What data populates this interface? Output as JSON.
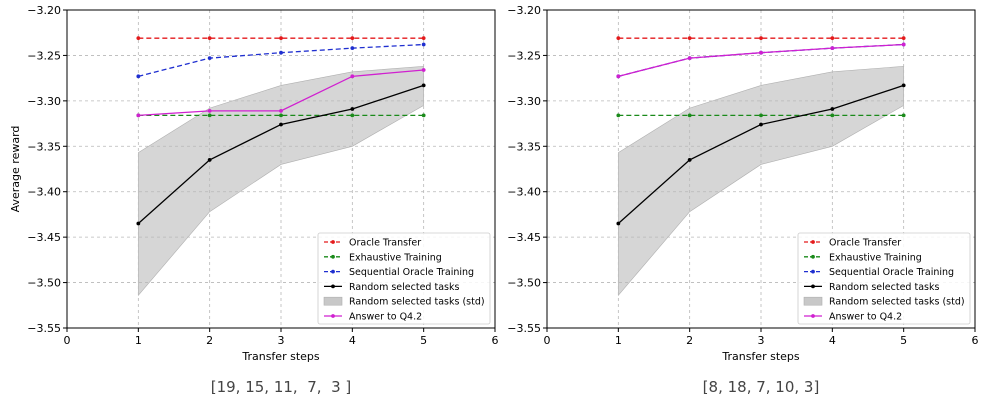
{
  "chart_data": [
    {
      "type": "line",
      "xlabel": "Transfer steps",
      "ylabel": "Average reward",
      "xlim": [
        0,
        6
      ],
      "ylim": [
        -3.55,
        -3.2
      ],
      "xticks": [
        0,
        1,
        2,
        3,
        4,
        5,
        6
      ],
      "yticks": [
        -3.55,
        -3.5,
        -3.45,
        -3.4,
        -3.35,
        -3.3,
        -3.25,
        -3.2
      ],
      "ytick_labels": [
        "−3.55",
        "−3.50",
        "−3.45",
        "−3.40",
        "−3.35",
        "−3.30",
        "−3.25",
        "−3.20"
      ],
      "grid": true,
      "legend_position": "lower-right",
      "caption": "[19, 15, 11,  7,  3 ]",
      "x": [
        1,
        2,
        3,
        4,
        5
      ],
      "series": [
        {
          "name": "Oracle Transfer",
          "color": "#e41a1c",
          "style": "dashed",
          "values": [
            -3.231,
            -3.231,
            -3.231,
            -3.231,
            -3.231
          ]
        },
        {
          "name": "Exhaustive Training",
          "color": "#1a8a1a",
          "style": "dashed",
          "values": [
            -3.316,
            -3.316,
            -3.316,
            -3.316,
            -3.316
          ]
        },
        {
          "name": "Sequential Oracle Training",
          "color": "#1f2fd0",
          "style": "dashed",
          "values": [
            -3.273,
            -3.253,
            -3.247,
            -3.242,
            -3.238
          ]
        },
        {
          "name": "Random selected tasks",
          "color": "#000000",
          "style": "solid",
          "values": [
            -3.435,
            -3.365,
            -3.326,
            -3.309,
            -3.283
          ]
        },
        {
          "name": "Answer to Q4.2",
          "color": "#d020d0",
          "style": "solid",
          "values": [
            -3.316,
            -3.311,
            -3.311,
            -3.273,
            -3.266
          ]
        }
      ],
      "band": {
        "name": "Random selected tasks (std)",
        "color": "#c8c8c8",
        "lower": [
          -3.514,
          -3.422,
          -3.37,
          -3.35,
          -3.305
        ],
        "upper": [
          -3.357,
          -3.308,
          -3.283,
          -3.268,
          -3.262
        ]
      }
    },
    {
      "type": "line",
      "xlabel": "Transfer steps",
      "ylabel": "",
      "xlim": [
        0,
        6
      ],
      "ylim": [
        -3.55,
        -3.2
      ],
      "xticks": [
        0,
        1,
        2,
        3,
        4,
        5,
        6
      ],
      "yticks": [
        -3.55,
        -3.5,
        -3.45,
        -3.4,
        -3.35,
        -3.3,
        -3.25,
        -3.2
      ],
      "ytick_labels": [
        "−3.55",
        "−3.50",
        "−3.45",
        "−3.40",
        "−3.35",
        "−3.30",
        "−3.25",
        "−3.20"
      ],
      "grid": true,
      "legend_position": "lower-right",
      "caption": "[8, 18, 7, 10, 3]",
      "x": [
        1,
        2,
        3,
        4,
        5
      ],
      "series": [
        {
          "name": "Oracle Transfer",
          "color": "#e41a1c",
          "style": "dashed",
          "values": [
            -3.231,
            -3.231,
            -3.231,
            -3.231,
            -3.231
          ]
        },
        {
          "name": "Exhaustive Training",
          "color": "#1a8a1a",
          "style": "dashed",
          "values": [
            -3.316,
            -3.316,
            -3.316,
            -3.316,
            -3.316
          ]
        },
        {
          "name": "Sequential Oracle Training",
          "color": "#1f2fd0",
          "style": "dashed",
          "values": [
            -3.273,
            -3.253,
            -3.247,
            -3.242,
            -3.238
          ]
        },
        {
          "name": "Random selected tasks",
          "color": "#000000",
          "style": "solid",
          "values": [
            -3.435,
            -3.365,
            -3.326,
            -3.309,
            -3.283
          ]
        },
        {
          "name": "Answer to Q4.2",
          "color": "#d020d0",
          "style": "solid",
          "values": [
            -3.273,
            -3.253,
            -3.247,
            -3.242,
            -3.238
          ]
        }
      ],
      "band": {
        "name": "Random selected tasks (std)",
        "color": "#c8c8c8",
        "lower": [
          -3.514,
          -3.422,
          -3.37,
          -3.35,
          -3.305
        ],
        "upper": [
          -3.357,
          -3.308,
          -3.283,
          -3.268,
          -3.262
        ]
      }
    }
  ],
  "legend_order": [
    "Oracle Transfer",
    "Exhaustive Training",
    "Sequential Oracle Training",
    "Random selected tasks",
    "Random selected tasks (std)",
    "Answer to Q4.2"
  ]
}
